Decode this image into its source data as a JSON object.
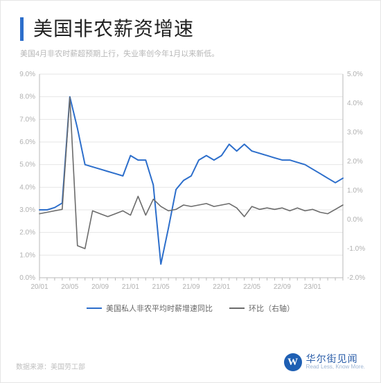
{
  "header": {
    "title": "美国非农薪资增速",
    "subtitle": "美国4月非农时薪超预期上行，失业率创今年1月以来新低。"
  },
  "chart": {
    "type": "line",
    "background_color": "#ffffff",
    "grid_color": "#e6e6e6",
    "axis_color": "#b8b8b8",
    "axis_font_size": 10,
    "left_axis": {
      "min": 0,
      "max": 9,
      "step": 1,
      "format": "{v}.0%",
      "ticks": [
        0,
        1,
        2,
        3,
        4,
        5,
        6,
        7,
        8,
        9
      ]
    },
    "right_axis": {
      "min": -2,
      "max": 5,
      "step": 1,
      "format": "{v}.0%",
      "ticks": [
        -2,
        -1,
        0,
        1,
        2,
        3,
        4,
        5
      ]
    },
    "x_labels": [
      "20/01",
      "20/05",
      "20/09",
      "21/01",
      "21/05",
      "21/09",
      "22/01",
      "22/05",
      "22/09",
      "23/01"
    ],
    "x_count": 41,
    "series": [
      {
        "name": "美国私人非农平均时薪增速同比",
        "axis": "left",
        "color": "#2c6ecb",
        "width": 2,
        "data": [
          3.0,
          3.0,
          3.1,
          3.3,
          8.0,
          6.6,
          5.0,
          4.9,
          4.8,
          4.7,
          4.6,
          4.5,
          5.4,
          5.2,
          5.2,
          4.1,
          0.6,
          2.2,
          3.9,
          4.3,
          4.5,
          5.2,
          5.4,
          5.2,
          5.4,
          5.9,
          5.6,
          5.9,
          5.6,
          5.5,
          5.4,
          5.3,
          5.2,
          5.2,
          5.1,
          5.0,
          4.8,
          4.6,
          4.4,
          4.2,
          4.4
        ]
      },
      {
        "name": "环比（右轴）",
        "axis": "right",
        "color": "#6b6b6b",
        "width": 1.6,
        "data": [
          0.2,
          0.25,
          0.3,
          0.35,
          4.2,
          -0.9,
          -1.0,
          0.3,
          0.2,
          0.1,
          0.2,
          0.3,
          0.15,
          0.8,
          0.15,
          0.7,
          0.45,
          0.3,
          0.35,
          0.5,
          0.45,
          0.5,
          0.55,
          0.45,
          0.5,
          0.55,
          0.4,
          0.1,
          0.45,
          0.35,
          0.4,
          0.35,
          0.4,
          0.3,
          0.4,
          0.3,
          0.35,
          0.25,
          0.2,
          0.35,
          0.5
        ]
      }
    ],
    "legend": [
      {
        "label": "美国私人非农平均时薪增速同比",
        "color": "#2c6ecb"
      },
      {
        "label": "环比（右轴）",
        "color": "#6b6b6b"
      }
    ]
  },
  "footer": {
    "source": "数据来源：美国劳工部",
    "brand_cn": "华尔街见闻",
    "brand_en": "Read Less, Know More.",
    "brand_initial": "W",
    "brand_color": "#1e5fb3"
  },
  "accent_bar_color": "#2c6ecb"
}
